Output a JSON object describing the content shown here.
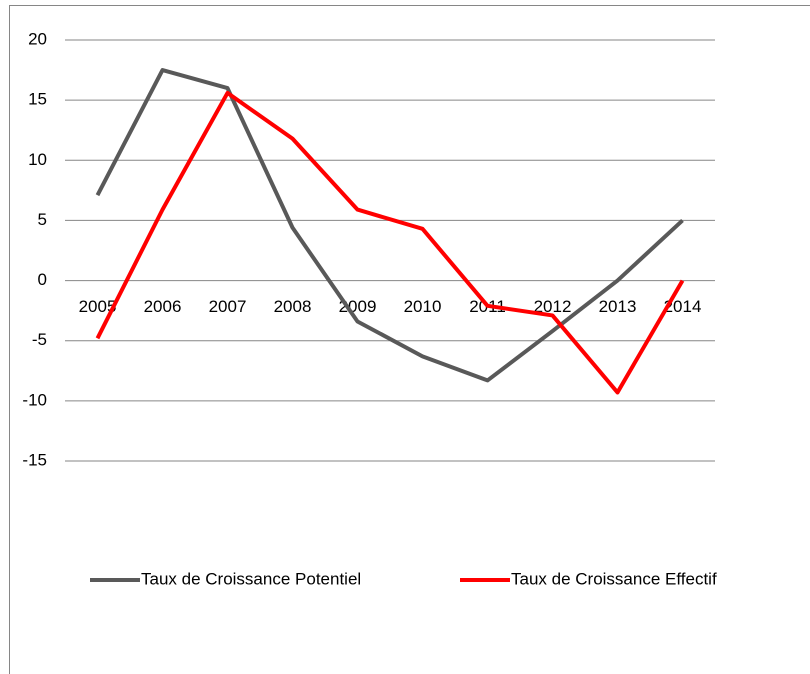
{
  "chart_data": {
    "type": "line",
    "categories": [
      "2005",
      "2006",
      "2007",
      "2008",
      "2009",
      "2010",
      "2011",
      "2012",
      "2013",
      "2014"
    ],
    "series": [
      {
        "name": "Taux de Croissance Potentiel",
        "color": "#595959",
        "values": [
          7.1,
          17.5,
          16.0,
          4.4,
          -3.4,
          -6.3,
          -8.3,
          -4.2,
          0,
          5.0
        ]
      },
      {
        "name": "Taux de Croissance Effectif",
        "color": "#ff0000",
        "values": [
          -4.8,
          5.9,
          15.6,
          11.8,
          5.9,
          4.3,
          -2.1,
          -2.9,
          -9.3,
          0
        ]
      }
    ],
    "ylim": [
      -15,
      20
    ],
    "yticks": [
      -15,
      -10,
      -5,
      0,
      5,
      10,
      15,
      20
    ],
    "grid": true,
    "legend": "bottom"
  }
}
